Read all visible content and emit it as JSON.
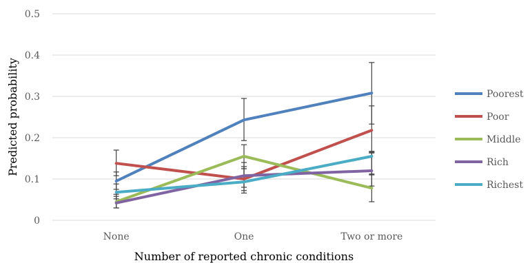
{
  "chart_data": {
    "type": "line",
    "title": "",
    "xlabel": "Number of reported chronic conditions",
    "ylabel": "Predicted probability",
    "categories": [
      "None",
      "One",
      "Two or more"
    ],
    "ylim": [
      0,
      0.5
    ],
    "yticks": [
      "0",
      "0.1",
      "0.2",
      "0.3",
      "0.4",
      "0.5"
    ],
    "grid": true,
    "legend_position": "right",
    "series": [
      {
        "name": "Poorest",
        "color": "#4f81bd",
        "values": [
          0.095,
          0.243,
          0.308
        ],
        "err_low": [
          0.075,
          0.193,
          0.233
        ],
        "err_high": [
          0.117,
          0.295,
          0.382
        ]
      },
      {
        "name": "Poor",
        "color": "#c0504d",
        "values": [
          0.138,
          0.1,
          0.218
        ],
        "err_low": [
          0.108,
          0.072,
          0.167
        ],
        "err_high": [
          0.17,
          0.13,
          0.277
        ]
      },
      {
        "name": "Middle",
        "color": "#9bbb59",
        "values": [
          0.045,
          0.155,
          0.078
        ],
        "err_low": [
          0.03,
          0.125,
          0.045
        ],
        "err_high": [
          0.063,
          0.183,
          0.112
        ]
      },
      {
        "name": "Rich",
        "color": "#8064a2",
        "values": [
          0.042,
          0.108,
          0.12
        ],
        "err_low": [
          0.03,
          0.08,
          0.083
        ],
        "err_high": [
          0.058,
          0.14,
          0.163
        ]
      },
      {
        "name": "Richest",
        "color": "#4bacc6",
        "values": [
          0.068,
          0.093,
          0.155
        ],
        "err_low": [
          0.052,
          0.066,
          0.11
        ],
        "err_high": [
          0.088,
          0.125,
          0.165
        ]
      }
    ]
  }
}
